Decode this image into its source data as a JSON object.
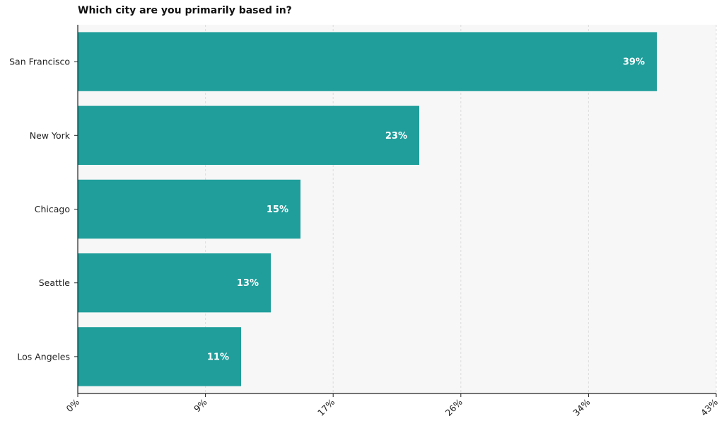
{
  "chart_data": {
    "type": "bar",
    "orientation": "horizontal",
    "title": "Which city are you primarily based in?",
    "categories": [
      "San Francisco",
      "New York",
      "Chicago",
      "Seattle",
      "Los Angeles"
    ],
    "values": [
      39,
      23,
      15,
      13,
      11
    ],
    "value_labels": [
      "39%",
      "23%",
      "15%",
      "13%",
      "11%"
    ],
    "xlim": [
      0,
      43
    ],
    "xticks": [
      0,
      8.6,
      17.2,
      25.8,
      34.4,
      43
    ],
    "xtick_labels": [
      "0%",
      "9%",
      "17%",
      "26%",
      "34%",
      "43%"
    ],
    "xlabel": "",
    "ylabel": "",
    "grid": "vertical dashed",
    "colors": {
      "bar": "#1f9e9b",
      "plot_bg": "#f7f7f7",
      "grid": "#dddddd",
      "axis": "#222222"
    }
  }
}
